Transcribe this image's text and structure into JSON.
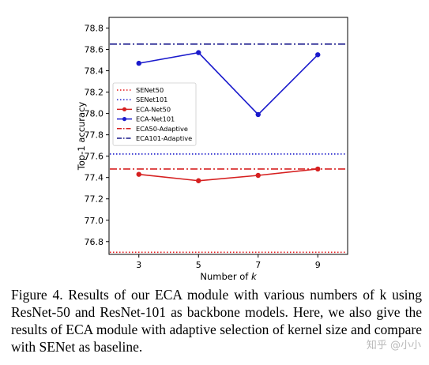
{
  "chart_data": {
    "type": "line",
    "xlabel": "Number of k",
    "ylabel": "Top-1 accuracy",
    "x": [
      3,
      5,
      7,
      9
    ],
    "xlim": [
      2,
      10
    ],
    "ylim": [
      76.68,
      78.9
    ],
    "yticks": [
      "76.8",
      "77.0",
      "77.2",
      "77.4",
      "77.6",
      "77.8",
      "78.0",
      "78.2",
      "78.4",
      "78.6",
      "78.8"
    ],
    "xticks": [
      "3",
      "5",
      "7",
      "9"
    ],
    "grid": false,
    "legend_position": "center-left",
    "series": [
      {
        "name": "SENet50",
        "kind": "hline",
        "value": 76.7,
        "color": "#e41a1c",
        "style": "dotted"
      },
      {
        "name": "SENet101",
        "kind": "hline",
        "value": 77.62,
        "color": "#1f1fcc",
        "style": "dotted"
      },
      {
        "name": "ECA-Net50",
        "kind": "line",
        "values": [
          77.43,
          77.37,
          77.42,
          77.48
        ],
        "color": "#d62020",
        "style": "solid"
      },
      {
        "name": "ECA-Net101",
        "kind": "line",
        "values": [
          78.47,
          78.57,
          77.99,
          78.55
        ],
        "color": "#1a1acc",
        "style": "solid"
      },
      {
        "name": "ECA50-Adaptive",
        "kind": "hline",
        "value": 77.48,
        "color": "#d62020",
        "style": "dashdot"
      },
      {
        "name": "ECA101-Adaptive",
        "kind": "hline",
        "value": 78.65,
        "color": "#1a1a8c",
        "style": "dashdot"
      }
    ]
  },
  "caption": "Figure 4. Results of our ECA module with various numbers of k using ResNet-50 and ResNet-101 as backbone models. Here, we also give the results of ECA module with adaptive selection of kernel size and compare with SENet as baseline.",
  "watermark": "知乎 @小小"
}
